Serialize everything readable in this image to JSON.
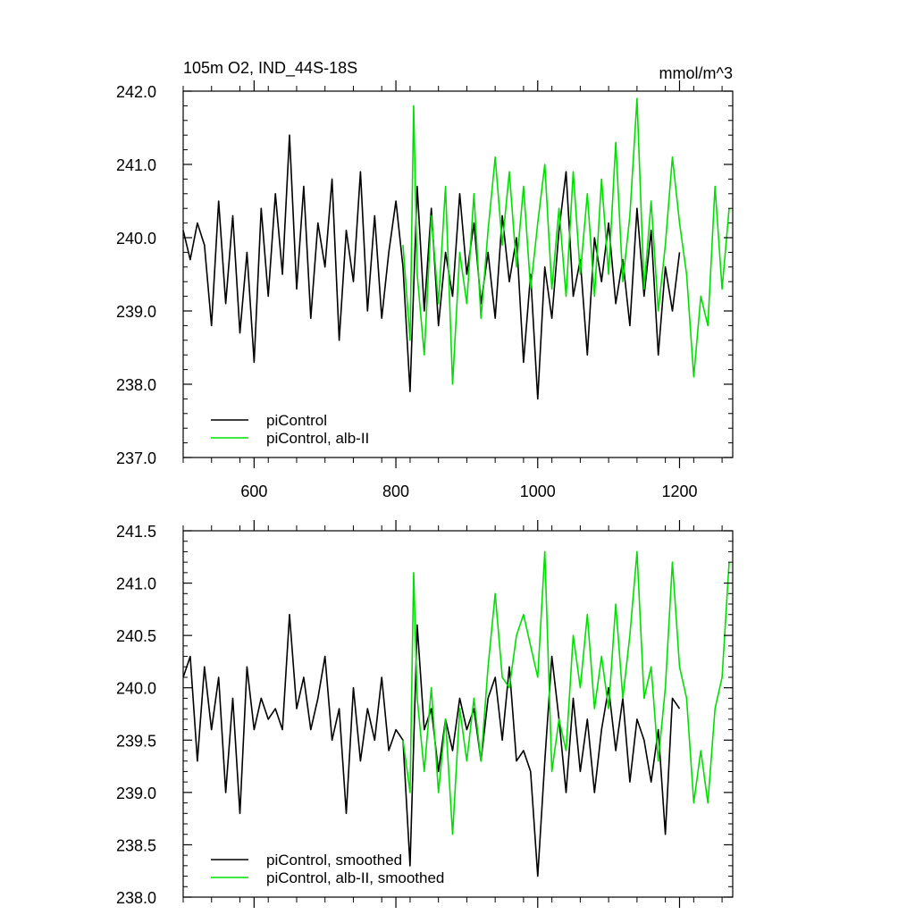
{
  "figure": {
    "title_left": "105m O2, IND_44S-18S",
    "title_right": "mmol/m^3"
  },
  "colors": {
    "background": "#ffffff",
    "axes": "#000000",
    "series_control": "#000000",
    "series_alb": "#00e000"
  },
  "chart_data": [
    {
      "type": "line",
      "name": "top",
      "title": "105m O2, IND_44S-18S",
      "units": "mmol/m^3",
      "xlabel": "",
      "ylabel": "",
      "xlim": [
        500,
        1275
      ],
      "ylim": [
        237.0,
        242.0
      ],
      "x_ticks": [
        600,
        800,
        1000,
        1200
      ],
      "y_ticks": [
        "237.0",
        "238.0",
        "239.0",
        "240.0",
        "241.0",
        "242.0"
      ],
      "legend": {
        "placement": "lower-left",
        "entries": [
          "piControl",
          "piControl, alb-II"
        ]
      },
      "grid": false,
      "series": [
        {
          "name": "piControl",
          "color": "#000000",
          "x": [
            500,
            510,
            520,
            530,
            540,
            550,
            560,
            570,
            580,
            590,
            600,
            610,
            620,
            630,
            640,
            650,
            660,
            670,
            680,
            690,
            700,
            710,
            720,
            730,
            740,
            750,
            760,
            770,
            780,
            790,
            800,
            810,
            820,
            830,
            840,
            850,
            860,
            870,
            880,
            890,
            900,
            910,
            920,
            930,
            940,
            950,
            960,
            970,
            980,
            990,
            1000,
            1010,
            1020,
            1030,
            1040,
            1050,
            1060,
            1070,
            1080,
            1090,
            1100,
            1110,
            1120,
            1130,
            1140,
            1150,
            1160,
            1170,
            1180,
            1190,
            1200
          ],
          "values": [
            240.1,
            239.7,
            240.2,
            239.9,
            238.8,
            240.5,
            239.1,
            240.3,
            238.7,
            239.8,
            238.3,
            240.4,
            239.2,
            240.6,
            239.5,
            241.4,
            239.3,
            240.7,
            238.9,
            240.2,
            239.6,
            240.8,
            238.6,
            240.1,
            239.4,
            240.9,
            239.0,
            240.3,
            238.9,
            239.8,
            240.5,
            239.6,
            237.9,
            240.7,
            239.0,
            240.4,
            238.8,
            239.8,
            239.2,
            240.6,
            239.5,
            240.2,
            239.1,
            239.8,
            238.9,
            240.3,
            239.4,
            240.0,
            238.3,
            239.5,
            237.8,
            239.6,
            238.9,
            240.1,
            240.9,
            239.2,
            239.7,
            238.4,
            240.0,
            239.4,
            240.2,
            239.1,
            239.7,
            238.8,
            240.4,
            239.2,
            240.1,
            238.4,
            239.6,
            239.0,
            239.8
          ]
        },
        {
          "name": "piControl, alb-II",
          "color": "#00e000",
          "x": [
            810,
            820,
            825,
            830,
            840,
            850,
            860,
            870,
            880,
            890,
            900,
            910,
            920,
            930,
            940,
            950,
            960,
            970,
            980,
            990,
            1000,
            1010,
            1020,
            1030,
            1040,
            1050,
            1060,
            1070,
            1080,
            1090,
            1100,
            1110,
            1120,
            1130,
            1140,
            1150,
            1160,
            1170,
            1180,
            1190,
            1200,
            1210,
            1220,
            1230,
            1240,
            1250,
            1260,
            1270
          ],
          "values": [
            239.9,
            238.6,
            241.8,
            239.5,
            238.4,
            240.3,
            239.1,
            240.7,
            238.0,
            239.8,
            239.1,
            240.6,
            238.9,
            240.1,
            241.1,
            239.9,
            240.9,
            239.6,
            240.7,
            239.3,
            240.2,
            241.0,
            239.3,
            240.4,
            239.2,
            240.9,
            239.5,
            240.6,
            239.2,
            240.8,
            239.5,
            241.3,
            239.4,
            240.3,
            241.9,
            239.3,
            240.5,
            239.0,
            239.9,
            241.1,
            240.2,
            239.5,
            238.1,
            239.2,
            238.8,
            240.7,
            239.3,
            240.4
          ]
        }
      ]
    },
    {
      "type": "line",
      "name": "bottom",
      "title": "",
      "xlabel": "",
      "ylabel": "",
      "xlim": [
        500,
        1275
      ],
      "ylim": [
        238.0,
        241.5
      ],
      "x_ticks": [
        600,
        800,
        1000,
        1200
      ],
      "x_tick_labels_shown": false,
      "y_ticks": [
        "238.0",
        "238.5",
        "239.0",
        "239.5",
        "240.0",
        "240.5",
        "241.0",
        "241.5"
      ],
      "legend": {
        "placement": "lower-left",
        "entries": [
          "piControl, smoothed",
          "piControl, alb-II, smoothed"
        ]
      },
      "grid": false,
      "series": [
        {
          "name": "piControl, smoothed",
          "color": "#000000",
          "x": [
            500,
            510,
            520,
            530,
            540,
            550,
            560,
            570,
            580,
            590,
            600,
            610,
            620,
            630,
            640,
            650,
            660,
            670,
            680,
            690,
            700,
            710,
            720,
            730,
            740,
            750,
            760,
            770,
            780,
            790,
            800,
            810,
            820,
            830,
            840,
            850,
            860,
            870,
            880,
            890,
            900,
            910,
            920,
            930,
            940,
            950,
            960,
            970,
            980,
            990,
            1000,
            1010,
            1020,
            1030,
            1040,
            1050,
            1060,
            1070,
            1080,
            1090,
            1100,
            1110,
            1120,
            1130,
            1140,
            1150,
            1160,
            1170,
            1180,
            1190,
            1200
          ],
          "values": [
            240.1,
            240.3,
            239.3,
            240.2,
            239.6,
            240.1,
            239.0,
            239.9,
            238.8,
            240.2,
            239.6,
            239.9,
            239.7,
            239.8,
            239.6,
            240.7,
            239.8,
            240.1,
            239.6,
            239.9,
            240.3,
            239.5,
            239.8,
            238.8,
            240.0,
            239.3,
            239.8,
            239.5,
            240.1,
            239.4,
            239.6,
            239.5,
            238.3,
            240.6,
            239.6,
            239.8,
            239.2,
            239.7,
            239.4,
            239.9,
            239.6,
            239.8,
            239.3,
            239.9,
            240.1,
            239.5,
            240.2,
            239.3,
            239.4,
            239.2,
            238.2,
            239.3,
            240.3,
            239.7,
            239.0,
            239.9,
            239.2,
            239.7,
            239.0,
            239.6,
            240.0,
            239.4,
            239.9,
            239.1,
            239.7,
            239.5,
            239.1,
            239.6,
            238.6,
            239.9,
            239.8
          ]
        },
        {
          "name": "piControl, alb-II, smoothed",
          "color": "#00e000",
          "x": [
            810,
            820,
            825,
            830,
            840,
            850,
            860,
            870,
            880,
            890,
            900,
            910,
            920,
            930,
            940,
            950,
            960,
            970,
            980,
            990,
            1000,
            1010,
            1020,
            1030,
            1040,
            1050,
            1060,
            1070,
            1080,
            1090,
            1100,
            1110,
            1120,
            1130,
            1140,
            1150,
            1160,
            1170,
            1180,
            1190,
            1200,
            1210,
            1220,
            1230,
            1240,
            1250,
            1260,
            1270
          ],
          "values": [
            239.5,
            239.0,
            241.1,
            239.9,
            239.2,
            240.0,
            239.0,
            239.7,
            238.6,
            239.8,
            239.3,
            239.9,
            239.3,
            240.2,
            240.9,
            240.1,
            240.0,
            240.5,
            240.7,
            240.4,
            240.1,
            241.3,
            239.2,
            239.7,
            239.4,
            240.5,
            240.0,
            240.7,
            239.8,
            240.3,
            239.8,
            240.8,
            239.9,
            240.5,
            241.3,
            239.9,
            240.2,
            239.3,
            240.0,
            241.2,
            240.2,
            239.9,
            238.9,
            239.4,
            238.9,
            239.8,
            240.1,
            241.2
          ]
        }
      ]
    }
  ]
}
